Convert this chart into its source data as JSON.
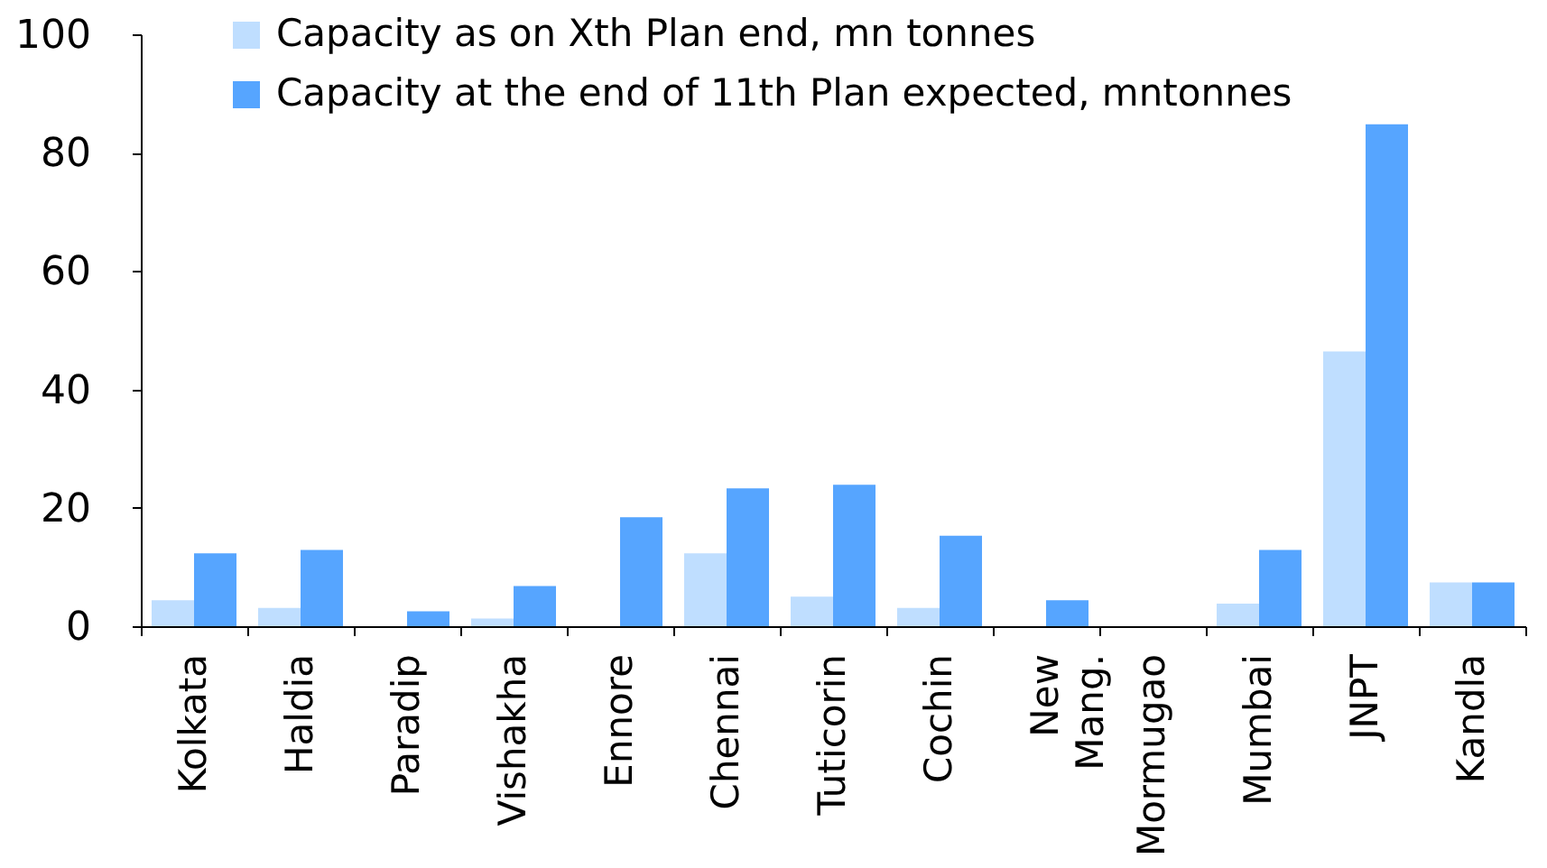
{
  "chart_data": {
    "type": "bar",
    "categories": [
      "Kolkata",
      "Haldia",
      "Paradip",
      "Vishakha",
      "Ennore",
      "Chennai",
      "Tuticorin",
      "Cochin",
      "New\nMang.",
      "Mormugao",
      "Mumbai",
      "JNPT",
      "Kandla"
    ],
    "series": [
      {
        "name": "Capacity as on Xth Plan end, mn tonnes",
        "color": "#bfdeff",
        "values": [
          4.4,
          3.1,
          null,
          1.3,
          null,
          12.3,
          5.0,
          3.1,
          null,
          null,
          3.8,
          46.4,
          7.4
        ]
      },
      {
        "name": "Capacity at the end of 11th Plan expected, mntonnes",
        "color": "#56a5ff",
        "values": [
          12.3,
          12.9,
          2.5,
          6.8,
          18.4,
          23.3,
          23.9,
          15.3,
          4.4,
          null,
          12.9,
          84.8,
          7.4
        ]
      }
    ],
    "ylim": [
      0,
      100
    ],
    "yticks": [
      0,
      20,
      40,
      60,
      80,
      100
    ],
    "legend": "top left"
  }
}
